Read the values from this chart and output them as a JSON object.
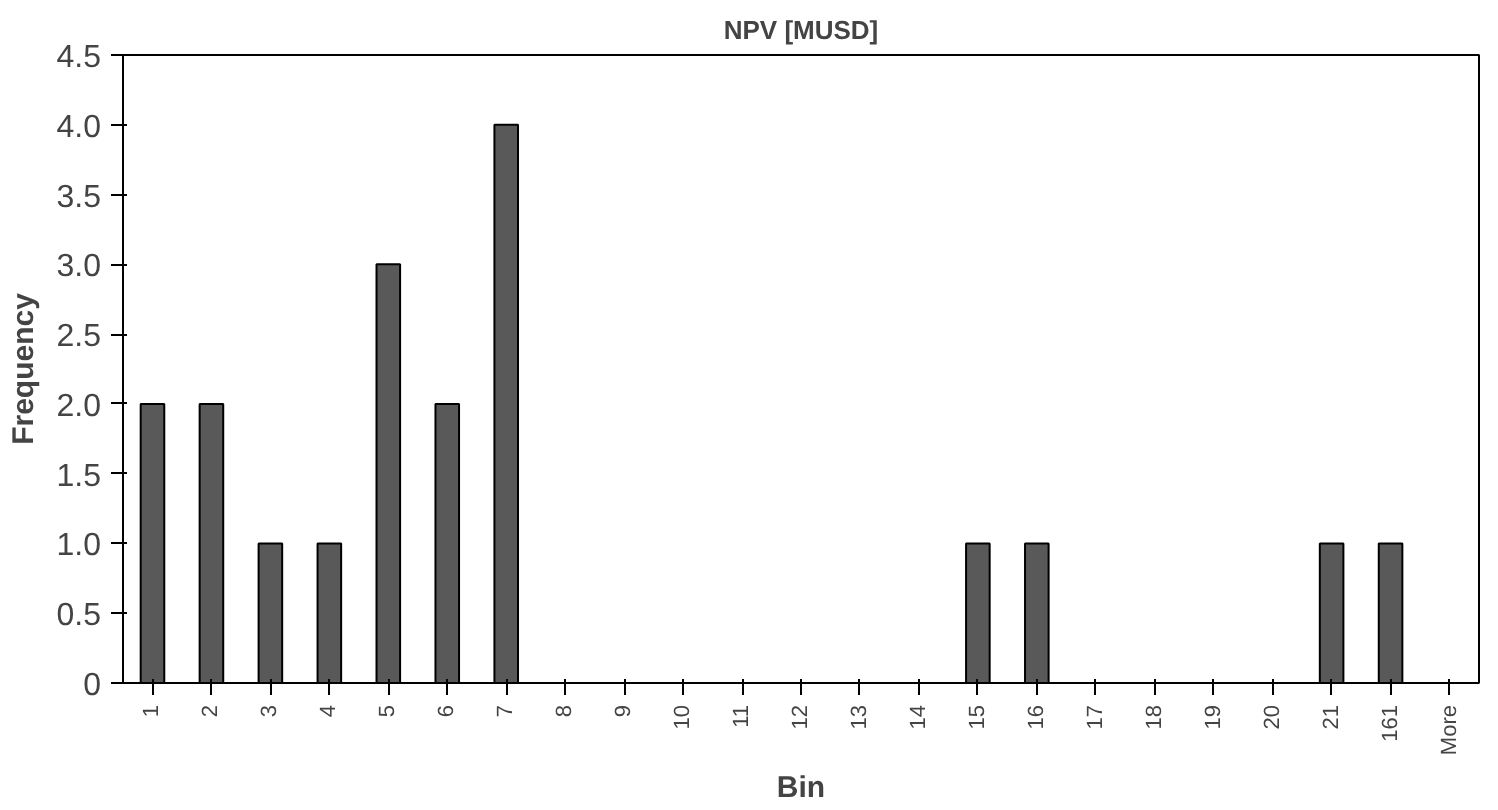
{
  "chart_data": {
    "type": "bar",
    "title": "NPV [MUSD]",
    "xlabel": "Bin",
    "ylabel": "Frequency",
    "categories": [
      "1",
      "2",
      "3",
      "4",
      "5",
      "6",
      "7",
      "8",
      "9",
      "10",
      "11",
      "12",
      "13",
      "14",
      "15",
      "16",
      "17",
      "18",
      "19",
      "20",
      "21",
      "161",
      "More"
    ],
    "values": [
      2,
      2,
      1,
      1,
      3,
      2,
      4,
      0,
      0,
      0,
      0,
      0,
      0,
      0,
      1,
      1,
      0,
      0,
      0,
      0,
      1,
      1,
      0
    ],
    "color": "#595959",
    "ylim": [
      0,
      4.5
    ],
    "yticks": [
      {
        "value": 0,
        "label": "0"
      },
      {
        "value": 0.5,
        "label": "0.5"
      },
      {
        "value": 1,
        "label": "1.0"
      },
      {
        "value": 1.5,
        "label": "1.5"
      },
      {
        "value": 2,
        "label": "2.0"
      },
      {
        "value": 2.5,
        "label": "2.5"
      },
      {
        "value": 3,
        "label": "3.0"
      },
      {
        "value": 3.5,
        "label": "3.5"
      },
      {
        "value": 4,
        "label": "4.0"
      },
      {
        "value": 4.5,
        "label": "4.5"
      }
    ],
    "grid": false
  }
}
